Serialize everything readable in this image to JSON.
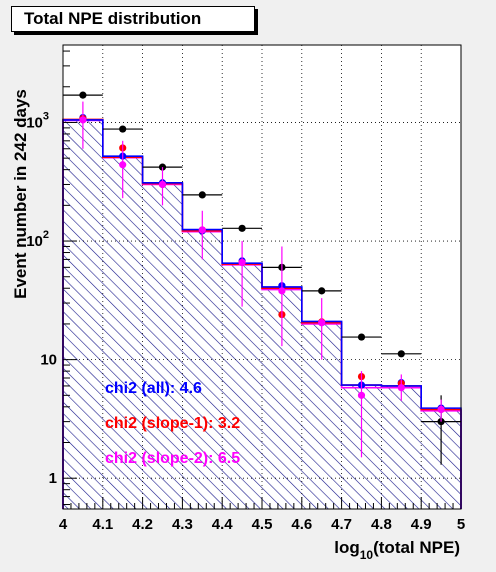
{
  "chart_data": {
    "type": "histogram",
    "title": "Total NPE distribution",
    "xlabel_pre": "log",
    "xlabel_sub": "10",
    "xlabel_post": "(total NPE)",
    "ylabel": "Event number in 242 days",
    "xlim": [
      4,
      5
    ],
    "ylim": [
      0.55,
      4500
    ],
    "yscale": "log",
    "grid": true,
    "x_ticks": [
      "4",
      "4.1",
      "4.2",
      "4.3",
      "4.4",
      "4.5",
      "4.6",
      "4.7",
      "4.8",
      "4.9",
      "5"
    ],
    "y_ticks": [
      {
        "value": 1,
        "label": "1"
      },
      {
        "value": 10,
        "label": "10"
      },
      {
        "value": 100,
        "label": "10",
        "exp": "2"
      },
      {
        "value": 1000,
        "label": "10",
        "exp": "3"
      }
    ],
    "bin_edges": [
      4.0,
      4.1,
      4.2,
      4.3,
      4.4,
      4.5,
      4.6,
      4.7,
      4.8,
      4.9,
      5.0
    ],
    "series": [
      {
        "name": "all",
        "role": "histogram",
        "color": "#0000ff",
        "hatch_color": "#1a1a8c",
        "values": [
          1050,
          520,
          310,
          125,
          65,
          41,
          21,
          6.1,
          6.0,
          3.9
        ]
      },
      {
        "name": "slope-1",
        "role": "histogram",
        "color": "#ff0000",
        "values": [
          1060,
          510,
          305,
          122,
          64,
          40,
          20.5,
          6.1,
          6.0,
          3.8
        ]
      },
      {
        "name": "slope-2",
        "role": "histogram",
        "color": "#ff00ff",
        "values": [
          1040,
          505,
          300,
          120,
          63,
          39,
          20,
          5.8,
          5.8,
          3.7
        ]
      },
      {
        "name": "data",
        "role": "points",
        "color": "#000000",
        "points": [
          {
            "x": 4.05,
            "y": 1700
          },
          {
            "x": 4.15,
            "y": 880
          },
          {
            "x": 4.25,
            "y": 420
          },
          {
            "x": 4.35,
            "y": 245
          },
          {
            "x": 4.45,
            "y": 128
          },
          {
            "x": 4.55,
            "y": 60
          },
          {
            "x": 4.65,
            "y": 38
          },
          {
            "x": 4.75,
            "y": 15.5
          },
          {
            "x": 4.85,
            "y": 11.2
          },
          {
            "x": 4.95,
            "y": 3.0,
            "lo": 1.3,
            "hi": 5.0
          }
        ]
      },
      {
        "name": "blue points",
        "role": "points",
        "color": "#0000ff",
        "points": [
          {
            "x": 4.05,
            "y": 1100
          },
          {
            "x": 4.15,
            "y": 520
          },
          {
            "x": 4.25,
            "y": 310
          },
          {
            "x": 4.35,
            "y": 122
          },
          {
            "x": 4.45,
            "y": 68
          },
          {
            "x": 4.55,
            "y": 42
          },
          {
            "x": 4.65,
            "y": 20.5
          },
          {
            "x": 4.75,
            "y": 6.1
          },
          {
            "x": 4.85,
            "y": 6.4
          },
          {
            "x": 4.95,
            "y": 3.9
          }
        ]
      },
      {
        "name": "red points",
        "role": "points",
        "color": "#ff0000",
        "points": [
          {
            "x": 4.05,
            "y": 1080
          },
          {
            "x": 4.15,
            "y": 610
          },
          {
            "x": 4.25,
            "y": 300
          },
          {
            "x": 4.35,
            "y": 124
          },
          {
            "x": 4.45,
            "y": 66
          },
          {
            "x": 4.55,
            "y": 24
          },
          {
            "x": 4.65,
            "y": 20.8
          },
          {
            "x": 4.75,
            "y": 7.2
          },
          {
            "x": 4.85,
            "y": 6.3
          },
          {
            "x": 4.95,
            "y": 3.8
          }
        ]
      },
      {
        "name": "magenta points",
        "role": "points",
        "color": "#ff00ff",
        "points": [
          {
            "x": 4.05,
            "y": 1050,
            "lo": 600,
            "hi": 1500
          },
          {
            "x": 4.15,
            "y": 440,
            "lo": 230,
            "hi": 700
          },
          {
            "x": 4.25,
            "y": 300,
            "lo": 200,
            "hi": 420
          },
          {
            "x": 4.35,
            "y": 124,
            "lo": 70,
            "hi": 180
          },
          {
            "x": 4.45,
            "y": 66,
            "lo": 28,
            "hi": 100
          },
          {
            "x": 4.55,
            "y": 38,
            "lo": 13,
            "hi": 90
          },
          {
            "x": 4.65,
            "y": 20.5,
            "lo": 10,
            "hi": 33
          },
          {
            "x": 4.75,
            "y": 5.0,
            "lo": 1.5,
            "hi": 8
          },
          {
            "x": 4.85,
            "y": 5.8,
            "lo": 4.5,
            "hi": 7.5
          },
          {
            "x": 4.95,
            "y": 3.8,
            "lo": 3.0,
            "hi": 4.6
          }
        ]
      }
    ],
    "annotations": [
      {
        "text": "chi2 (all): 4.6",
        "color": "#0000ff"
      },
      {
        "text": "chi2 (slope-1): 3.2",
        "color": "#ff0000"
      },
      {
        "text": "chi2 (slope-2): 6.5",
        "color": "#ff00ff"
      }
    ]
  }
}
